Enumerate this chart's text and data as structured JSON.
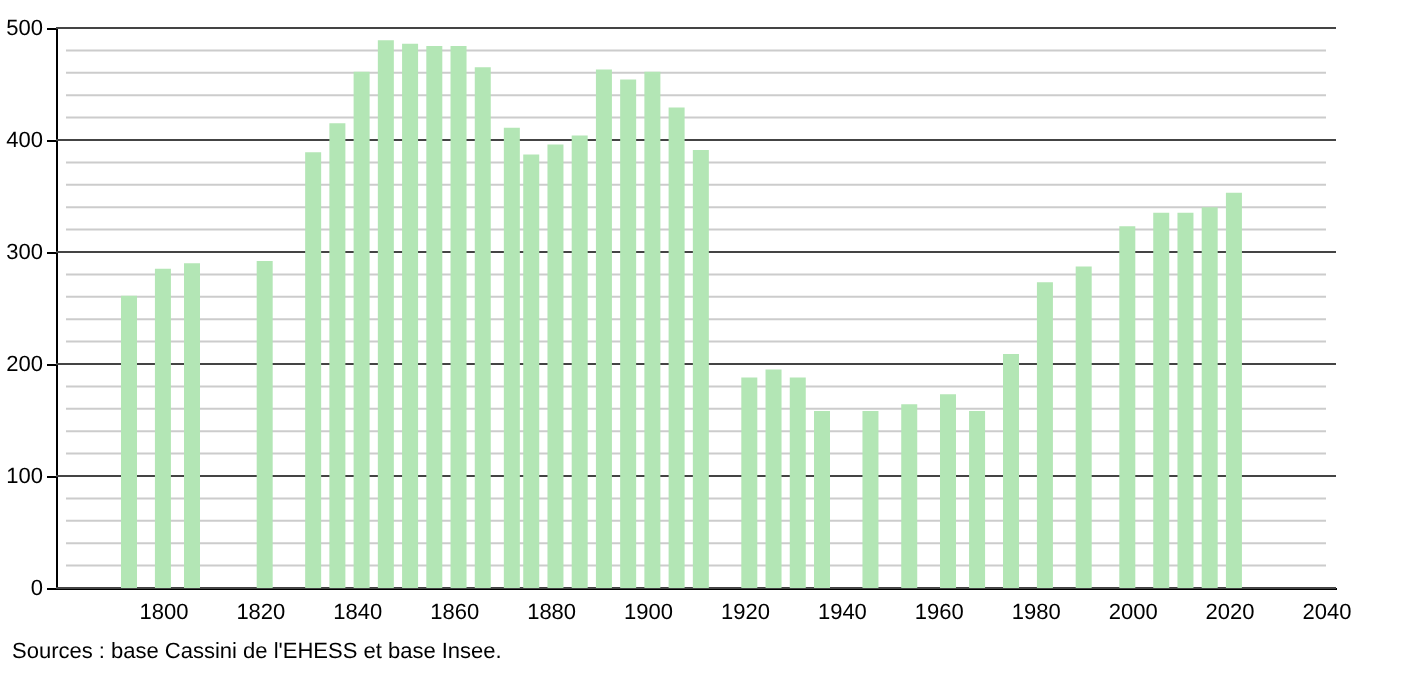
{
  "chart_data": {
    "type": "bar",
    "color": "#b3e6b5",
    "x": [
      1793,
      1800,
      1806,
      1821,
      1831,
      1836,
      1841,
      1846,
      1851,
      1856,
      1861,
      1866,
      1872,
      1876,
      1881,
      1886,
      1891,
      1896,
      1901,
      1906,
      1911,
      1921,
      1926,
      1931,
      1936,
      1946,
      1954,
      1962,
      1968,
      1975,
      1982,
      1990,
      1999,
      2006,
      2011,
      2016,
      2021
    ],
    "values": [
      261,
      285,
      290,
      292,
      389,
      415,
      461,
      489,
      486,
      484,
      484,
      465,
      411,
      387,
      396,
      404,
      463,
      454,
      461,
      429,
      391,
      188,
      195,
      188,
      158,
      158,
      164,
      173,
      158,
      209,
      273,
      287,
      323,
      335,
      335,
      340,
      353
    ],
    "xlim": [
      1780,
      2040
    ],
    "xticks": [
      1800,
      1820,
      1840,
      1860,
      1880,
      1900,
      1920,
      1940,
      1960,
      1980,
      2000,
      2020,
      2040
    ],
    "ylim": [
      0,
      500
    ],
    "yticks": [
      0,
      100,
      200,
      300,
      400,
      500
    ],
    "grid": "y",
    "annotations": [
      "Sources : base Cassini de l'EHESS et base Insee."
    ]
  }
}
